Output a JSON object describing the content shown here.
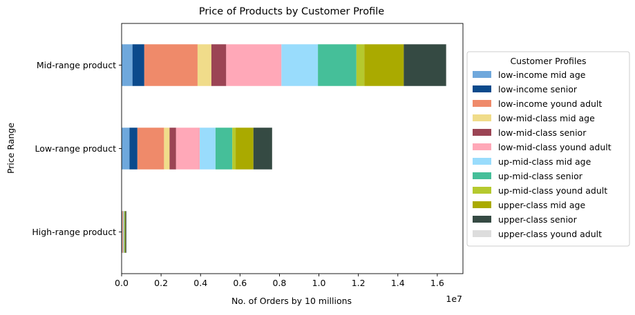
{
  "chart_data": {
    "type": "bar",
    "orientation": "horizontal",
    "stacked": true,
    "title": "Price of Products by Customer Profile",
    "xlabel": "No. of Orders by 10 millions",
    "ylabel": "Price Range",
    "x_offset_label": "1e7",
    "xlim": [
      0,
      17300000
    ],
    "x_ticks": [
      0,
      2000000,
      4000000,
      6000000,
      8000000,
      10000000,
      12000000,
      14000000,
      16000000
    ],
    "x_tick_labels": [
      "0.0",
      "0.2",
      "0.4",
      "0.6",
      "0.8",
      "1.0",
      "1.2",
      "1.4",
      "1.6"
    ],
    "categories": [
      "High-range product",
      "Low-range product",
      "Mid-range product"
    ],
    "legend": {
      "title": "Customer Profiles",
      "position": "right"
    },
    "grid": false,
    "series": [
      {
        "name": "low-income mid age",
        "color": "#6fa8dc",
        "values": [
          20000,
          400000,
          550000
        ]
      },
      {
        "name": "low-income senior",
        "color": "#0b4a8c",
        "values": [
          10000,
          400000,
          600000
        ]
      },
      {
        "name": "low-income yound adult",
        "color": "#ef8a6a",
        "values": [
          30000,
          1350000,
          2700000
        ]
      },
      {
        "name": "low-mid-class mid age",
        "color": "#f0dc8a",
        "values": [
          10000,
          280000,
          700000
        ]
      },
      {
        "name": "low-mid-class senior",
        "color": "#9b4454",
        "values": [
          10000,
          330000,
          750000
        ]
      },
      {
        "name": "low-mid-class yound adult",
        "color": "#ffa8b8",
        "values": [
          20000,
          1200000,
          2800000
        ]
      },
      {
        "name": "up-mid-class mid age",
        "color": "#99dcfc",
        "values": [
          20000,
          800000,
          1850000
        ]
      },
      {
        "name": "up-mid-class senior",
        "color": "#45bf99",
        "values": [
          20000,
          850000,
          1950000
        ]
      },
      {
        "name": "up-mid-class yound adult",
        "color": "#b5c92e",
        "values": [
          10000,
          170000,
          400000
        ]
      },
      {
        "name": "upper-class mid age",
        "color": "#aaaa00",
        "values": [
          40000,
          900000,
          2000000
        ]
      },
      {
        "name": "upper-class senior",
        "color": "#354a43",
        "values": [
          50000,
          950000,
          2150000
        ]
      },
      {
        "name": "upper-class yound adult",
        "color": "#dddddd",
        "values": [
          2000,
          5000,
          15000
        ]
      }
    ]
  }
}
